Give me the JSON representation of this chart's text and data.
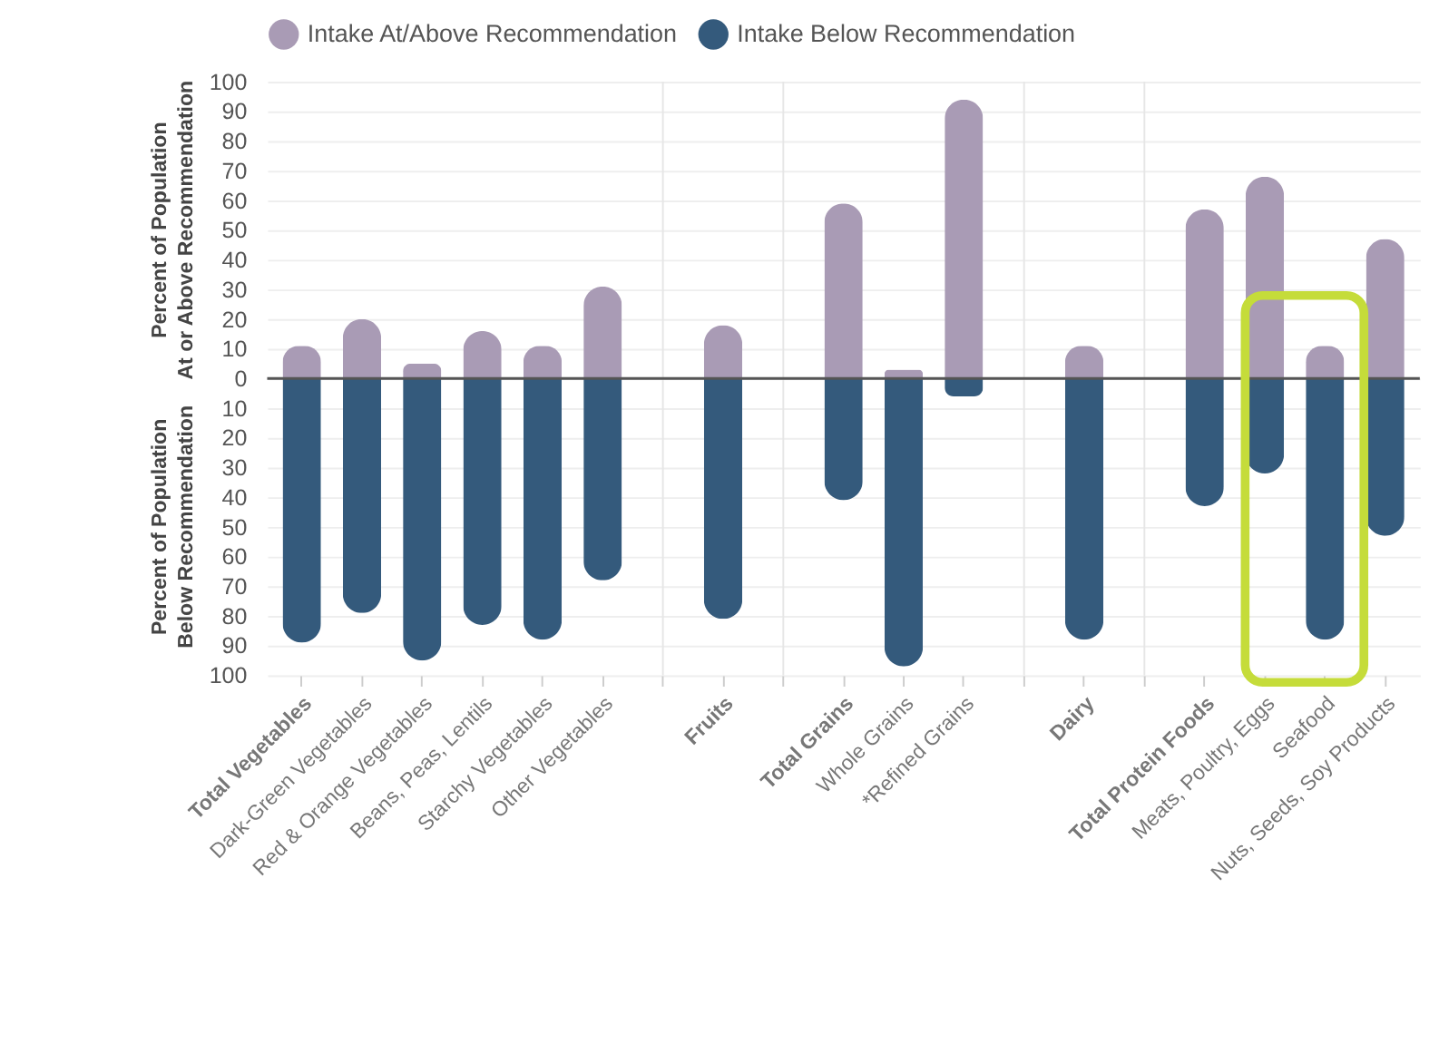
{
  "chart_data": {
    "type": "bar",
    "ylabel": "Percent of Population\nAt or Above Recommendation",
    "annotations": [
      "Percent of Population\nBelow Recommendation"
    ],
    "categories": [
      "Total Vegetables",
      "Dark-Green Vegetables",
      "Red & Orange Vegetables",
      "Beans, Peas, Lentils",
      "Starchy Vegetables",
      "Other Vegetables",
      null,
      "Fruits",
      null,
      "Total Grains",
      "Whole Grains",
      "*Refined Grains",
      null,
      "Dairy",
      null,
      "Total Protein Foods",
      "Meats, Poultry, Eggs",
      "Seafood",
      "Nuts, Seeds, Soy Products"
    ],
    "series": [
      {
        "name": "Intake At/Above Recommendation",
        "color": "#a99bb5",
        "values": [
          11,
          20,
          5,
          16,
          11,
          31,
          null,
          18,
          null,
          59,
          3,
          94,
          null,
          11,
          null,
          57,
          68,
          11,
          47
        ]
      },
      {
        "name": "Intake Below Recommendation",
        "color": "#345a7c",
        "values": [
          -89,
          -79,
          -95,
          -83,
          -88,
          -68,
          null,
          -81,
          null,
          -41,
          -97,
          -6,
          null,
          -88,
          null,
          -43,
          -32,
          -88,
          -53
        ]
      }
    ],
    "ylim": [
      -100,
      100
    ],
    "yticks": [
      {
        "value": -100,
        "label": "100"
      },
      {
        "value": -90,
        "label": "90"
      },
      {
        "value": -80,
        "label": "80"
      },
      {
        "value": -70,
        "label": "70"
      },
      {
        "value": -60,
        "label": "60"
      },
      {
        "value": -50,
        "label": "50"
      },
      {
        "value": -40,
        "label": "40"
      },
      {
        "value": -30,
        "label": "30"
      },
      {
        "value": -20,
        "label": "20"
      },
      {
        "value": -10,
        "label": "10"
      },
      0,
      10,
      20,
      30,
      40,
      50,
      60,
      70,
      80,
      90,
      100
    ],
    "ref_lines": [
      {
        "axis": "y",
        "value": 0,
        "color": "#555555"
      }
    ],
    "stacked": true,
    "grid": true,
    "legend": "top left"
  }
}
